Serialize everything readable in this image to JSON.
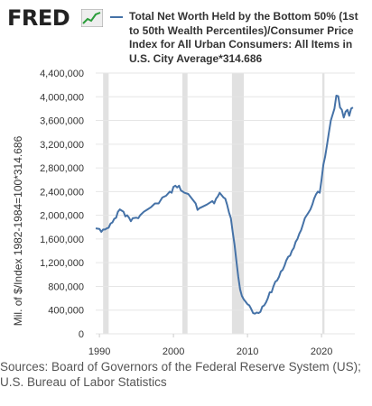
{
  "header": {
    "logo_text": "FRED",
    "logo_mark_icon": "fred-chart-icon",
    "series_name": "Total Net Worth Held by the Bottom 50% (1st to 50th Wealth Percentiles)/Consumer Price Index for All Urban Consumers: All Items in U.S. City Average*314.686"
  },
  "footer": {
    "sources": "Sources: Board of Governors of the Federal Reserve System (US); U.S. Bureau of Labor Statistics"
  },
  "colors": {
    "line": "#4572a7",
    "recession": "#e1e1e1",
    "grid": "#e6e6e6"
  },
  "chart_data": {
    "type": "line",
    "title": "",
    "xlabel": "",
    "ylabel": "Mil. of $/Index 1982-1984=100*314.686",
    "x_ticks": [
      "1990",
      "2000",
      "2010",
      "2020"
    ],
    "y_ticks": [
      "0",
      "400,000",
      "800,000",
      "1,200,000",
      "1,600,000",
      "2,000,000",
      "2,400,000",
      "2,800,000",
      "3,200,000",
      "3,600,000",
      "4,000,000",
      "4,400,000"
    ],
    "xlim": [
      1989.5,
      2024.5
    ],
    "ylim": [
      0,
      4400000
    ],
    "grid": true,
    "recessions": [
      [
        1990.5,
        1991.25
      ],
      [
        2001.2,
        2001.9
      ],
      [
        2007.9,
        2009.5
      ],
      [
        2020.1,
        2020.4
      ]
    ],
    "series": [
      {
        "name": "Total Net Worth Held by the Bottom 50% (1st to 50th Wealth Percentiles)/Consumer Price Index for All Urban Consumers: All Items in U.S. City Average*314.686",
        "points": [
          [
            1989.5,
            1780000
          ],
          [
            1990.0,
            1770000
          ],
          [
            1990.25,
            1720000
          ],
          [
            1990.5,
            1760000
          ],
          [
            1990.75,
            1760000
          ],
          [
            1991.0,
            1780000
          ],
          [
            1991.25,
            1790000
          ],
          [
            1991.5,
            1860000
          ],
          [
            1991.75,
            1880000
          ],
          [
            1992.0,
            1940000
          ],
          [
            1992.25,
            1960000
          ],
          [
            1992.5,
            2060000
          ],
          [
            1992.75,
            2100000
          ],
          [
            1993.0,
            2080000
          ],
          [
            1993.25,
            2060000
          ],
          [
            1993.5,
            1980000
          ],
          [
            1993.75,
            2000000
          ],
          [
            1994.0,
            1960000
          ],
          [
            1994.25,
            1900000
          ],
          [
            1994.5,
            1950000
          ],
          [
            1995.0,
            1960000
          ],
          [
            1995.25,
            1950000
          ],
          [
            1995.5,
            2000000
          ],
          [
            1996.0,
            2060000
          ],
          [
            1996.5,
            2100000
          ],
          [
            1997.0,
            2140000
          ],
          [
            1997.5,
            2200000
          ],
          [
            1998.0,
            2200000
          ],
          [
            1998.5,
            2300000
          ],
          [
            1999.0,
            2330000
          ],
          [
            1999.5,
            2400000
          ],
          [
            1999.75,
            2380000
          ],
          [
            2000.0,
            2480000
          ],
          [
            2000.25,
            2500000
          ],
          [
            2000.5,
            2470000
          ],
          [
            2000.75,
            2500000
          ],
          [
            2001.0,
            2420000
          ],
          [
            2001.5,
            2380000
          ],
          [
            2002.0,
            2360000
          ],
          [
            2002.5,
            2280000
          ],
          [
            2003.0,
            2200000
          ],
          [
            2003.25,
            2090000
          ],
          [
            2003.5,
            2120000
          ],
          [
            2004.0,
            2150000
          ],
          [
            2004.5,
            2180000
          ],
          [
            2005.0,
            2220000
          ],
          [
            2005.25,
            2240000
          ],
          [
            2005.5,
            2200000
          ],
          [
            2005.75,
            2280000
          ],
          [
            2006.0,
            2320000
          ],
          [
            2006.25,
            2380000
          ],
          [
            2006.5,
            2340000
          ],
          [
            2006.75,
            2300000
          ],
          [
            2007.0,
            2280000
          ],
          [
            2007.25,
            2180000
          ],
          [
            2007.5,
            2050000
          ],
          [
            2007.75,
            1950000
          ],
          [
            2008.0,
            1720000
          ],
          [
            2008.25,
            1500000
          ],
          [
            2008.5,
            1230000
          ],
          [
            2008.75,
            960000
          ],
          [
            2009.0,
            750000
          ],
          [
            2009.25,
            640000
          ],
          [
            2009.5,
            580000
          ],
          [
            2009.75,
            540000
          ],
          [
            2010.0,
            500000
          ],
          [
            2010.25,
            480000
          ],
          [
            2010.5,
            420000
          ],
          [
            2010.75,
            350000
          ],
          [
            2011.0,
            340000
          ],
          [
            2011.25,
            360000
          ],
          [
            2011.5,
            350000
          ],
          [
            2011.75,
            370000
          ],
          [
            2012.0,
            460000
          ],
          [
            2012.25,
            480000
          ],
          [
            2012.5,
            530000
          ],
          [
            2012.75,
            600000
          ],
          [
            2013.0,
            700000
          ],
          [
            2013.25,
            700000
          ],
          [
            2013.5,
            800000
          ],
          [
            2013.75,
            880000
          ],
          [
            2014.0,
            900000
          ],
          [
            2014.25,
            960000
          ],
          [
            2014.5,
            1050000
          ],
          [
            2014.75,
            1080000
          ],
          [
            2015.0,
            1150000
          ],
          [
            2015.25,
            1240000
          ],
          [
            2015.5,
            1300000
          ],
          [
            2015.75,
            1320000
          ],
          [
            2016.0,
            1400000
          ],
          [
            2016.25,
            1450000
          ],
          [
            2016.5,
            1550000
          ],
          [
            2016.75,
            1600000
          ],
          [
            2017.0,
            1690000
          ],
          [
            2017.25,
            1750000
          ],
          [
            2017.5,
            1850000
          ],
          [
            2017.75,
            1950000
          ],
          [
            2018.0,
            2000000
          ],
          [
            2018.25,
            2050000
          ],
          [
            2018.5,
            2100000
          ],
          [
            2018.75,
            2180000
          ],
          [
            2019.0,
            2280000
          ],
          [
            2019.25,
            2350000
          ],
          [
            2019.5,
            2400000
          ],
          [
            2019.75,
            2380000
          ],
          [
            2020.0,
            2600000
          ],
          [
            2020.25,
            2850000
          ],
          [
            2020.5,
            3000000
          ],
          [
            2020.75,
            3200000
          ],
          [
            2021.0,
            3400000
          ],
          [
            2021.25,
            3600000
          ],
          [
            2021.5,
            3700000
          ],
          [
            2021.75,
            3800000
          ],
          [
            2022.0,
            4020000
          ],
          [
            2022.25,
            4010000
          ],
          [
            2022.5,
            3820000
          ],
          [
            2022.75,
            3780000
          ],
          [
            2023.0,
            3650000
          ],
          [
            2023.25,
            3750000
          ],
          [
            2023.5,
            3780000
          ],
          [
            2023.75,
            3680000
          ],
          [
            2024.0,
            3800000
          ],
          [
            2024.25,
            3820000
          ]
        ]
      }
    ]
  }
}
